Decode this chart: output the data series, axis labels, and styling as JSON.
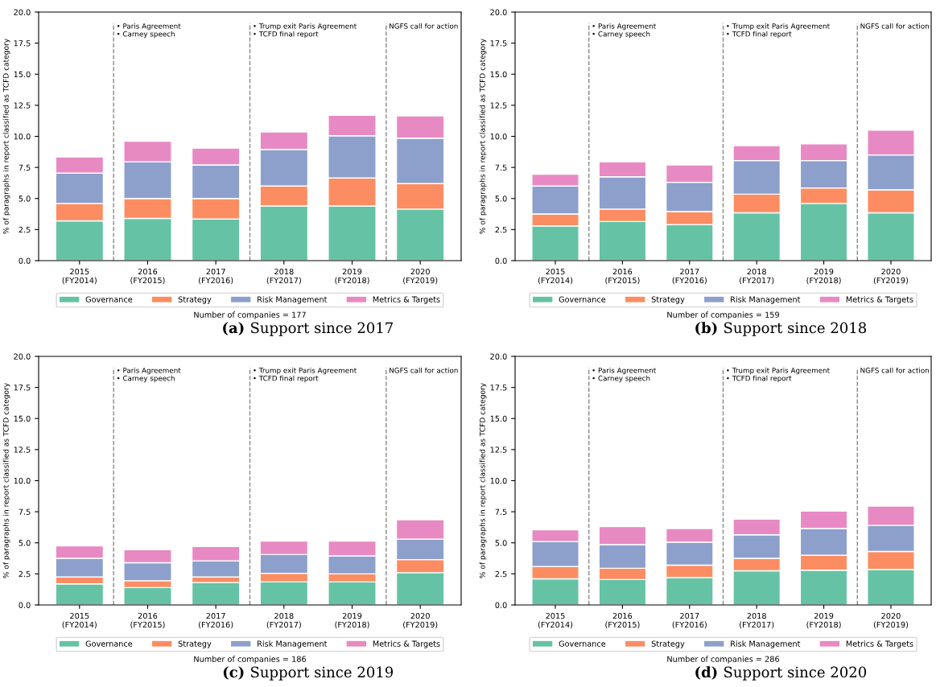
{
  "chart_data": [
    {
      "type": "bar",
      "stacked": true,
      "title": "(a) Support since 2017",
      "ylabel": "% of paragraphs in report classified as TCFD category",
      "categories": [
        "2015\n(FY2014)",
        "2016\n(FY2015)",
        "2017\n(FY2016)",
        "2018\n(FY2017)",
        "2019\n(FY2018)",
        "2020\n(FY2019)"
      ],
      "ylim": [
        0,
        20
      ],
      "yticks": [
        {
          "value": 0,
          "label": "0.0"
        },
        2.5,
        {
          "value": 5,
          "label": "5.0"
        },
        7.5,
        {
          "value": 10,
          "label": "10.0"
        },
        12.5,
        {
          "value": 15,
          "label": "15.0"
        },
        17.5,
        {
          "value": 20,
          "label": "20.0"
        }
      ],
      "grid": false,
      "legend": "bottom",
      "series": [
        {
          "name": "Governance",
          "color": "#66c2a5",
          "values": [
            3.2,
            3.4,
            3.35,
            4.4,
            4.4,
            4.15
          ]
        },
        {
          "name": "Strategy",
          "color": "#fc8d62",
          "values": [
            1.4,
            1.6,
            1.65,
            1.6,
            2.25,
            2.05
          ]
        },
        {
          "name": "Risk Management",
          "color": "#8da0cb",
          "values": [
            2.45,
            2.95,
            2.7,
            2.95,
            3.4,
            3.65
          ]
        },
        {
          "name": "Metrics & Targets",
          "color": "#e78ac3",
          "values": [
            1.3,
            1.65,
            1.35,
            1.4,
            1.65,
            1.8
          ]
        }
      ],
      "annotations": [
        "• Paris Agreement\n• Carney speech",
        "• Trump exit Paris Agreement\n• TCFD final report",
        "NGFS call for action",
        "Number of companies = 177"
      ]
    },
    {
      "type": "bar",
      "stacked": true,
      "title": "(b) Support since 2018",
      "ylabel": "% of paragraphs in report classified as TCFD category",
      "categories": [
        "2015\n(FY2014)",
        "2016\n(FY2015)",
        "2017\n(FY2016)",
        "2018\n(FY2017)",
        "2019\n(FY2018)",
        "2020\n(FY2019)"
      ],
      "ylim": [
        0,
        20
      ],
      "yticks": [
        {
          "value": 0,
          "label": "0.0"
        },
        2.5,
        {
          "value": 5,
          "label": "5.0"
        },
        7.5,
        {
          "value": 10,
          "label": "10.0"
        },
        12.5,
        {
          "value": 15,
          "label": "15.0"
        },
        17.5,
        {
          "value": 20,
          "label": "20.0"
        }
      ],
      "grid": false,
      "legend": "bottom",
      "series": [
        {
          "name": "Governance",
          "color": "#66c2a5",
          "values": [
            2.8,
            3.15,
            2.9,
            3.85,
            4.6,
            3.85
          ]
        },
        {
          "name": "Strategy",
          "color": "#fc8d62",
          "values": [
            0.95,
            1.0,
            1.05,
            1.5,
            1.25,
            1.85
          ]
        },
        {
          "name": "Risk Management",
          "color": "#8da0cb",
          "values": [
            2.25,
            2.6,
            2.35,
            2.7,
            2.2,
            2.8
          ]
        },
        {
          "name": "Metrics & Targets",
          "color": "#e78ac3",
          "values": [
            0.95,
            1.2,
            1.4,
            1.2,
            1.35,
            2.0
          ]
        }
      ],
      "annotations": [
        "• Paris Agreement\n• Carney speech",
        "• Trump exit Paris Agreement\n• TCFD final report",
        "NGFS call for action",
        "Number of companies = 159"
      ]
    },
    {
      "type": "bar",
      "stacked": true,
      "title": "(c) Support since 2019",
      "ylabel": "% of paragraphs in report classified as TCFD category",
      "categories": [
        "2015\n(FY2014)",
        "2016\n(FY2015)",
        "2017\n(FY2016)",
        "2018\n(FY2017)",
        "2019\n(FY2018)",
        "2020\n(FY2019)"
      ],
      "ylim": [
        0,
        20
      ],
      "yticks": [
        {
          "value": 0,
          "label": "0.0"
        },
        2.5,
        {
          "value": 5,
          "label": "5.0"
        },
        7.5,
        {
          "value": 10,
          "label": "10.0"
        },
        12.5,
        {
          "value": 15,
          "label": "15.0"
        },
        17.5,
        {
          "value": 20,
          "label": "20.0"
        }
      ],
      "grid": false,
      "legend": "bottom",
      "series": [
        {
          "name": "Governance",
          "color": "#66c2a5",
          "values": [
            1.7,
            1.4,
            1.8,
            1.85,
            1.85,
            2.6
          ]
        },
        {
          "name": "Strategy",
          "color": "#fc8d62",
          "values": [
            0.55,
            0.55,
            0.45,
            0.7,
            0.65,
            1.05
          ]
        },
        {
          "name": "Risk Management",
          "color": "#8da0cb",
          "values": [
            1.5,
            1.45,
            1.3,
            1.5,
            1.45,
            1.65
          ]
        },
        {
          "name": "Metrics & Targets",
          "color": "#e78ac3",
          "values": [
            1.0,
            1.05,
            1.15,
            1.1,
            1.2,
            1.55
          ]
        }
      ],
      "annotations": [
        "• Paris Agreement\n• Carney speech",
        "• Trump exit Paris Agreement\n• TCFD final report",
        "NGFS call for action",
        "Number of companies = 186"
      ]
    },
    {
      "type": "bar",
      "stacked": true,
      "title": "(d) Support since 2020",
      "ylabel": "% of paragraphs in report classified as TCFD category",
      "categories": [
        "2015\n(FY2014)",
        "2016\n(FY2015)",
        "2017\n(FY2016)",
        "2018\n(FY2017)",
        "2019\n(FY2018)",
        "2020\n(FY2019)"
      ],
      "ylim": [
        0,
        20
      ],
      "yticks": [
        {
          "value": 0,
          "label": "0.0"
        },
        2.5,
        {
          "value": 5,
          "label": "5.0"
        },
        7.5,
        {
          "value": 10,
          "label": "10.0"
        },
        12.5,
        {
          "value": 15,
          "label": "15.0"
        },
        17.5,
        {
          "value": 20,
          "label": "20.0"
        }
      ],
      "grid": false,
      "legend": "bottom",
      "series": [
        {
          "name": "Governance",
          "color": "#66c2a5",
          "values": [
            2.1,
            2.05,
            2.2,
            2.75,
            2.8,
            2.85
          ]
        },
        {
          "name": "Strategy",
          "color": "#fc8d62",
          "values": [
            1.0,
            0.9,
            1.0,
            1.0,
            1.2,
            1.45
          ]
        },
        {
          "name": "Risk Management",
          "color": "#8da0cb",
          "values": [
            2.0,
            1.9,
            1.85,
            1.9,
            2.15,
            2.1
          ]
        },
        {
          "name": "Metrics & Targets",
          "color": "#e78ac3",
          "values": [
            0.95,
            1.45,
            1.1,
            1.25,
            1.4,
            1.55
          ]
        }
      ],
      "annotations": [
        "• Paris Agreement\n• Carney speech",
        "• Trump exit Paris Agreement\n• TCFD final report",
        "NGFS call for action",
        "Number of companies = 286"
      ]
    }
  ]
}
